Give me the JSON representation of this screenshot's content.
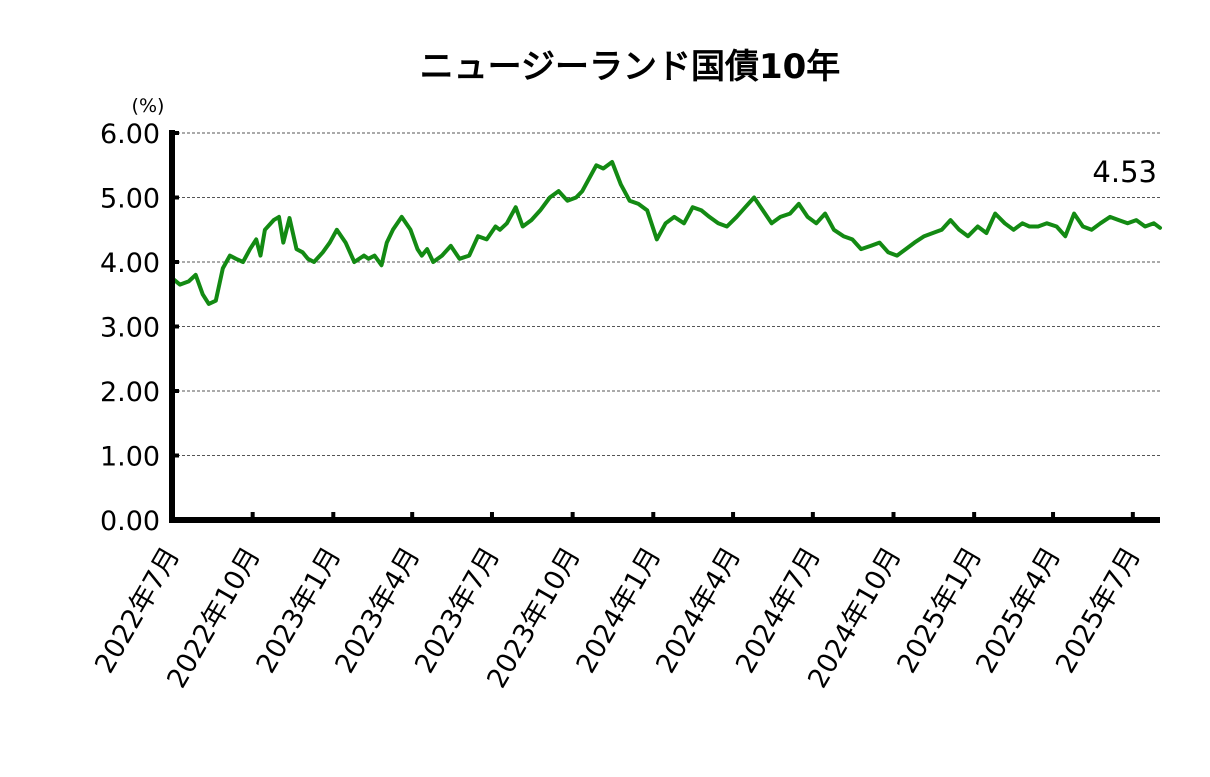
{
  "chart_data": {
    "type": "line",
    "title": "ニュージーランド国債10年",
    "y_unit": "(%)",
    "ylim": [
      0,
      6
    ],
    "y_ticks": [
      "0.00",
      "1.00",
      "2.00",
      "3.00",
      "4.00",
      "5.00",
      "6.00"
    ],
    "x_tick_labels": [
      "2022年7月",
      "2022年10月",
      "2023年1月",
      "2023年4月",
      "2023年7月",
      "2023年10月",
      "2024年1月",
      "2024年4月",
      "2024年7月",
      "2024年10月",
      "2025年1月",
      "2025年4月",
      "2025年7月"
    ],
    "grid": "horizontal-dashed",
    "legend": "none",
    "last_value_label": "4.53",
    "series": [
      {
        "color": "#138a13",
        "x": [
          "2022-07-01",
          "2022-07-10",
          "2022-07-20",
          "2022-07-28",
          "2022-08-05",
          "2022-08-12",
          "2022-08-20",
          "2022-08-28",
          "2022-09-05",
          "2022-09-12",
          "2022-09-20",
          "2022-09-28",
          "2022-10-05",
          "2022-10-10",
          "2022-10-15",
          "2022-10-25",
          "2022-10-31",
          "2022-11-05",
          "2022-11-12",
          "2022-11-20",
          "2022-11-27",
          "2022-12-03",
          "2022-12-10",
          "2022-12-20",
          "2022-12-28",
          "2023-01-05",
          "2023-01-15",
          "2023-01-25",
          "2023-02-05",
          "2023-02-10",
          "2023-02-17",
          "2023-02-25",
          "2023-03-03",
          "2023-03-10",
          "2023-03-20",
          "2023-03-30",
          "2023-04-07",
          "2023-04-12",
          "2023-04-18",
          "2023-04-25",
          "2023-05-05",
          "2023-05-15",
          "2023-05-25",
          "2023-06-05",
          "2023-06-15",
          "2023-06-25",
          "2023-07-05",
          "2023-07-10",
          "2023-07-18",
          "2023-07-28",
          "2023-08-05",
          "2023-08-15",
          "2023-08-25",
          "2023-09-05",
          "2023-09-15",
          "2023-09-25",
          "2023-10-05",
          "2023-10-12",
          "2023-10-20",
          "2023-10-28",
          "2023-11-05",
          "2023-11-15",
          "2023-11-25",
          "2023-12-05",
          "2023-12-15",
          "2023-12-25",
          "2024-01-05",
          "2024-01-15",
          "2024-01-25",
          "2024-02-05",
          "2024-02-15",
          "2024-02-25",
          "2024-03-05",
          "2024-03-15",
          "2024-03-25",
          "2024-04-05",
          "2024-04-15",
          "2024-04-25",
          "2024-05-05",
          "2024-05-15",
          "2024-05-25",
          "2024-06-05",
          "2024-06-15",
          "2024-06-25",
          "2024-07-05",
          "2024-07-15",
          "2024-07-25",
          "2024-08-05",
          "2024-08-15",
          "2024-08-25",
          "2024-09-05",
          "2024-09-15",
          "2024-09-25",
          "2024-10-05",
          "2024-10-15",
          "2024-10-25",
          "2024-11-05",
          "2024-11-15",
          "2024-11-25",
          "2024-12-05",
          "2024-12-15",
          "2024-12-25",
          "2025-01-05",
          "2025-01-15",
          "2025-01-25",
          "2025-02-05",
          "2025-02-15",
          "2025-02-25",
          "2025-03-05",
          "2025-03-15",
          "2025-03-25",
          "2025-04-05",
          "2025-04-15",
          "2025-04-25",
          "2025-05-05",
          "2025-05-15",
          "2025-05-25",
          "2025-06-05",
          "2025-06-15",
          "2025-06-25",
          "2025-07-05",
          "2025-07-15",
          "2025-07-25",
          "2025-08-01"
        ],
        "values": [
          3.75,
          3.65,
          3.7,
          3.8,
          3.5,
          3.35,
          3.4,
          3.9,
          4.1,
          4.05,
          4.0,
          4.2,
          4.35,
          4.1,
          4.5,
          4.65,
          4.7,
          4.3,
          4.68,
          4.2,
          4.15,
          4.05,
          4.0,
          4.15,
          4.3,
          4.5,
          4.3,
          4.0,
          4.1,
          4.05,
          4.1,
          3.95,
          4.3,
          4.5,
          4.7,
          4.5,
          4.2,
          4.1,
          4.2,
          4.0,
          4.1,
          4.25,
          4.05,
          4.1,
          4.4,
          4.35,
          4.55,
          4.5,
          4.6,
          4.85,
          4.55,
          4.65,
          4.8,
          5.0,
          5.1,
          4.95,
          5.0,
          5.1,
          5.3,
          5.5,
          5.45,
          5.55,
          5.2,
          4.95,
          4.9,
          4.8,
          4.35,
          4.6,
          4.7,
          4.6,
          4.85,
          4.8,
          4.7,
          4.6,
          4.55,
          4.7,
          4.85,
          5.0,
          4.8,
          4.6,
          4.7,
          4.75,
          4.9,
          4.7,
          4.6,
          4.75,
          4.5,
          4.4,
          4.35,
          4.2,
          4.25,
          4.3,
          4.15,
          4.1,
          4.2,
          4.3,
          4.4,
          4.45,
          4.5,
          4.65,
          4.5,
          4.4,
          4.55,
          4.45,
          4.75,
          4.6,
          4.5,
          4.6,
          4.55,
          4.55,
          4.6,
          4.55,
          4.4,
          4.75,
          4.55,
          4.5,
          4.6,
          4.7,
          4.65,
          4.6,
          4.65,
          4.55,
          4.6,
          4.53
        ]
      }
    ]
  }
}
